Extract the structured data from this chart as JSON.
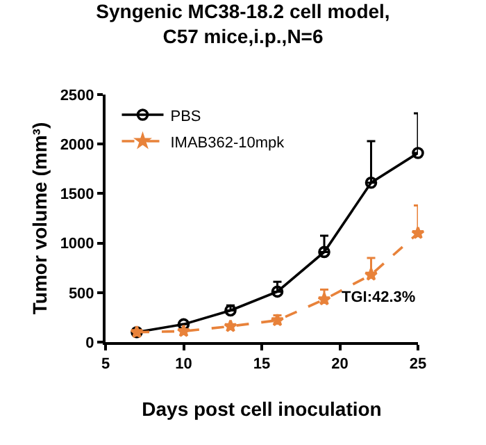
{
  "chart_data": {
    "type": "line",
    "title": "Syngenic MC38-18.2 cell model,\nC57 mice,i.p.,N=6",
    "xlabel": "Days post cell inoculation",
    "ylabel": "Tumor volume (mm³)",
    "x": [
      7,
      10,
      13,
      16,
      19,
      22,
      25
    ],
    "series": [
      {
        "name": "PBS",
        "color": "#000000",
        "marker": "circle",
        "line_style": "solid",
        "values": [
          100,
          180,
          320,
          510,
          910,
          1610,
          1910
        ],
        "errors": [
          null,
          null,
          [
            320,
            370
          ],
          [
            510,
            610
          ],
          [
            910,
            1075
          ],
          [
            1610,
            2030
          ],
          [
            1910,
            2310
          ]
        ]
      },
      {
        "name": "IMAB362-10mpk",
        "color": "#e8823a",
        "marker": "star",
        "line_style": "dashed",
        "values": [
          100,
          110,
          160,
          220,
          430,
          680,
          1100
        ],
        "errors": [
          null,
          null,
          null,
          [
            220,
            270
          ],
          [
            430,
            530
          ],
          [
            680,
            850
          ],
          [
            1100,
            1380
          ]
        ]
      }
    ],
    "xlim": [
      5,
      25
    ],
    "xticks": [
      5,
      10,
      15,
      20,
      25
    ],
    "ylim": [
      0,
      2500
    ],
    "yticks": [
      0,
      500,
      1000,
      1500,
      2000,
      2500
    ],
    "legend": "top left",
    "annotations": [
      "TGI:42.3%"
    ]
  }
}
